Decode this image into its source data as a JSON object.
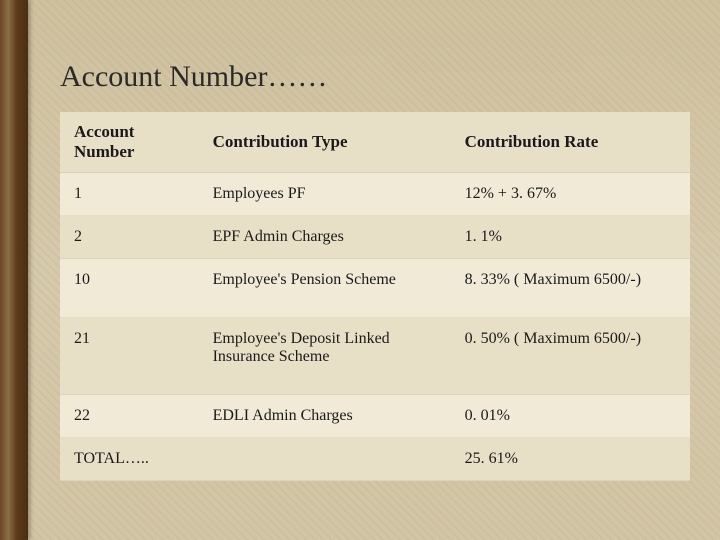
{
  "title": "Account Number……",
  "table": {
    "columns": [
      "Account Number",
      "Contribution Type",
      "Contribution Rate"
    ],
    "col_widths": [
      "22%",
      "40%",
      "38%"
    ],
    "rows": [
      {
        "acct": "1",
        "type": "Employees PF",
        "rate": "12% + 3. 67%",
        "tall": false
      },
      {
        "acct": "2",
        "type": "EPF Admin Charges",
        "rate": "1. 1%",
        "tall": false
      },
      {
        "acct": "10",
        "type": "Employee's Pension Scheme",
        "rate": "8. 33% ( Maximum 6500/-)",
        "tall": true
      },
      {
        "acct": "21",
        "type": "Employee's Deposit Linked Insurance Scheme",
        "rate": "0. 50% ( Maximum 6500/-)",
        "tall": true
      },
      {
        "acct": "22",
        "type": "EDLI Admin Charges",
        "rate": "0. 01%",
        "tall": false
      },
      {
        "acct": "TOTAL…..",
        "type": "",
        "rate": "25. 61%",
        "tall": false
      }
    ],
    "header_bg": "#e8dfc7",
    "row_odd_bg": "#f0ead6",
    "row_even_bg": "#e8dfc7",
    "header_fontsize": 17,
    "cell_fontsize": 16,
    "text_color": "#1a1a1a"
  },
  "background": {
    "base_color": "#d4c8a8",
    "left_edge_colors": [
      "#6b4423",
      "#8b6f47",
      "#5c3a1a",
      "#4a2f15"
    ],
    "left_edge_width": 28
  },
  "title_fontsize": 30,
  "title_color": "#2a2a2a"
}
